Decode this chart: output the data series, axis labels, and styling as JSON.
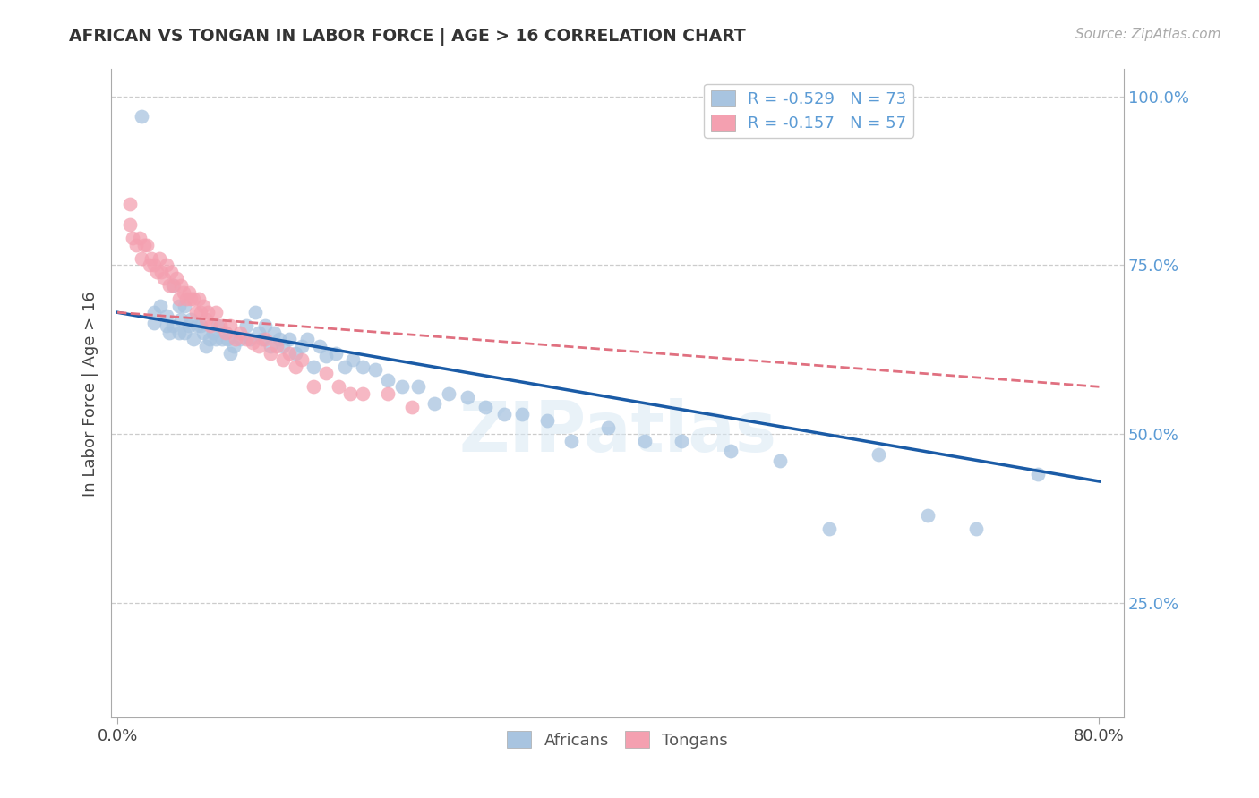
{
  "title": "AFRICAN VS TONGAN IN LABOR FORCE | AGE > 16 CORRELATION CHART",
  "source": "Source: ZipAtlas.com",
  "ylabel": "In Labor Force | Age > 16",
  "xlim": [
    -0.005,
    0.82
  ],
  "ylim": [
    0.08,
    1.04
  ],
  "african_R": -0.529,
  "african_N": 73,
  "tongan_R": -0.157,
  "tongan_N": 57,
  "african_color": "#A8C4E0",
  "tongan_color": "#F4A0B0",
  "african_line_color": "#1A5BA6",
  "tongan_line_color": "#E07080",
  "legend_label_african": "Africans",
  "legend_label_tongan": "Tongans",
  "watermark": "ZIPatlas",
  "right_yticks": [
    0.25,
    0.5,
    0.75,
    1.0
  ],
  "right_yticklabels": [
    "25.0%",
    "50.0%",
    "75.0%",
    "100.0%"
  ],
  "african_x": [
    0.02,
    0.03,
    0.03,
    0.035,
    0.04,
    0.04,
    0.042,
    0.045,
    0.045,
    0.05,
    0.05,
    0.052,
    0.055,
    0.055,
    0.058,
    0.06,
    0.062,
    0.065,
    0.068,
    0.07,
    0.072,
    0.075,
    0.078,
    0.08,
    0.082,
    0.085,
    0.09,
    0.092,
    0.095,
    0.1,
    0.105,
    0.108,
    0.112,
    0.115,
    0.118,
    0.12,
    0.125,
    0.128,
    0.132,
    0.135,
    0.14,
    0.145,
    0.15,
    0.155,
    0.16,
    0.165,
    0.17,
    0.178,
    0.185,
    0.192,
    0.2,
    0.21,
    0.22,
    0.232,
    0.245,
    0.258,
    0.27,
    0.285,
    0.3,
    0.315,
    0.33,
    0.35,
    0.37,
    0.4,
    0.43,
    0.46,
    0.5,
    0.54,
    0.58,
    0.62,
    0.66,
    0.7,
    0.75
  ],
  "african_y": [
    0.97,
    0.68,
    0.665,
    0.69,
    0.66,
    0.675,
    0.65,
    0.72,
    0.66,
    0.69,
    0.65,
    0.67,
    0.69,
    0.65,
    0.66,
    0.67,
    0.64,
    0.66,
    0.66,
    0.65,
    0.63,
    0.64,
    0.65,
    0.64,
    0.66,
    0.64,
    0.64,
    0.62,
    0.63,
    0.64,
    0.66,
    0.64,
    0.68,
    0.65,
    0.64,
    0.66,
    0.63,
    0.65,
    0.64,
    0.63,
    0.64,
    0.62,
    0.63,
    0.64,
    0.6,
    0.63,
    0.615,
    0.62,
    0.6,
    0.61,
    0.6,
    0.595,
    0.58,
    0.57,
    0.57,
    0.545,
    0.56,
    0.555,
    0.54,
    0.53,
    0.53,
    0.52,
    0.49,
    0.51,
    0.49,
    0.49,
    0.475,
    0.46,
    0.36,
    0.47,
    0.38,
    0.36,
    0.44
  ],
  "tongan_x": [
    0.01,
    0.01,
    0.012,
    0.015,
    0.018,
    0.02,
    0.022,
    0.024,
    0.026,
    0.028,
    0.03,
    0.032,
    0.034,
    0.036,
    0.038,
    0.04,
    0.042,
    0.044,
    0.046,
    0.048,
    0.05,
    0.052,
    0.054,
    0.056,
    0.058,
    0.06,
    0.062,
    0.064,
    0.066,
    0.068,
    0.07,
    0.072,
    0.074,
    0.076,
    0.08,
    0.084,
    0.088,
    0.092,
    0.096,
    0.1,
    0.105,
    0.11,
    0.115,
    0.12,
    0.125,
    0.13,
    0.135,
    0.14,
    0.145,
    0.15,
    0.16,
    0.17,
    0.18,
    0.19,
    0.2,
    0.22,
    0.24
  ],
  "tongan_y": [
    0.84,
    0.81,
    0.79,
    0.78,
    0.79,
    0.76,
    0.78,
    0.78,
    0.75,
    0.76,
    0.75,
    0.74,
    0.76,
    0.74,
    0.73,
    0.75,
    0.72,
    0.74,
    0.72,
    0.73,
    0.7,
    0.72,
    0.71,
    0.7,
    0.71,
    0.7,
    0.7,
    0.68,
    0.7,
    0.68,
    0.69,
    0.67,
    0.68,
    0.66,
    0.68,
    0.66,
    0.65,
    0.66,
    0.64,
    0.65,
    0.64,
    0.635,
    0.63,
    0.64,
    0.62,
    0.63,
    0.61,
    0.62,
    0.6,
    0.61,
    0.57,
    0.59,
    0.57,
    0.56,
    0.56,
    0.56,
    0.54
  ],
  "african_trend_x0": 0.0,
  "african_trend_x1": 0.8,
  "african_trend_y0": 0.68,
  "african_trend_y1": 0.43,
  "tongan_trend_x0": 0.0,
  "tongan_trend_x1": 0.8,
  "tongan_trend_y0": 0.68,
  "tongan_trend_y1": 0.57
}
